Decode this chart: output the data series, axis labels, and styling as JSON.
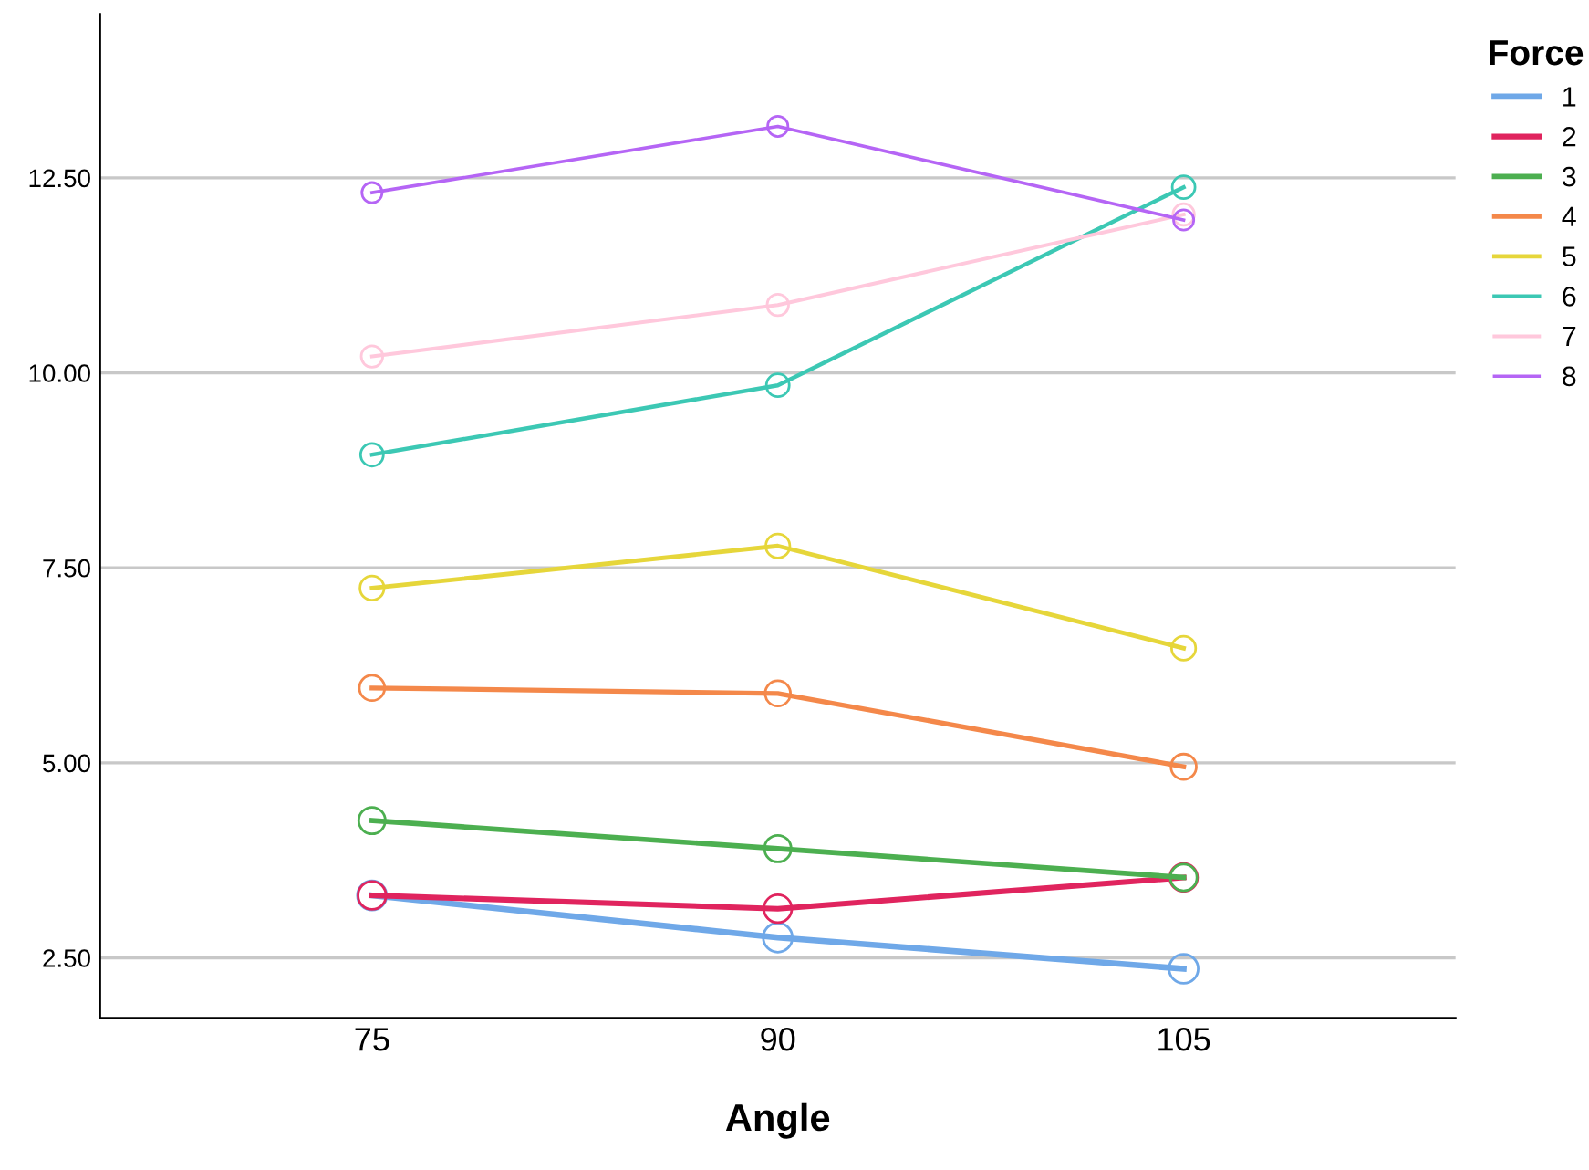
{
  "chart_data": {
    "type": "line",
    "xlabel": "Angle",
    "legend_title": "Force",
    "categories": [
      "75",
      "90",
      "105"
    ],
    "series": [
      {
        "name": "1",
        "color": "#6fa8e8",
        "values": [
          3.3,
          2.76,
          2.36
        ]
      },
      {
        "name": "2",
        "color": "#e0245e",
        "values": [
          3.3,
          3.13,
          3.53
        ]
      },
      {
        "name": "3",
        "color": "#4caf50",
        "values": [
          4.26,
          3.9,
          3.53
        ]
      },
      {
        "name": "4",
        "color": "#f4884a",
        "values": [
          5.96,
          5.89,
          4.95
        ]
      },
      {
        "name": "5",
        "color": "#e6d63a",
        "values": [
          7.24,
          7.78,
          6.47
        ]
      },
      {
        "name": "6",
        "color": "#3cc8b4",
        "values": [
          8.95,
          9.84,
          12.38
        ]
      },
      {
        "name": "7",
        "color": "#ffc8dc",
        "values": [
          10.21,
          10.87,
          12.03
        ]
      },
      {
        "name": "8",
        "color": "#b565f5",
        "values": [
          12.31,
          13.16,
          11.96
        ]
      }
    ],
    "ylim": [
      1.73,
      14.6
    ],
    "yticks": [
      {
        "value": 2.5,
        "label": "2.50"
      },
      {
        "value": 5,
        "label": "5.00"
      },
      {
        "value": 7.5,
        "label": "7.50"
      },
      {
        "value": 10,
        "label": "10.00"
      },
      {
        "value": 12.5,
        "label": "12.50"
      }
    ],
    "grid": "y",
    "legend": "top right",
    "marker": "circle",
    "line_style": "solid"
  }
}
